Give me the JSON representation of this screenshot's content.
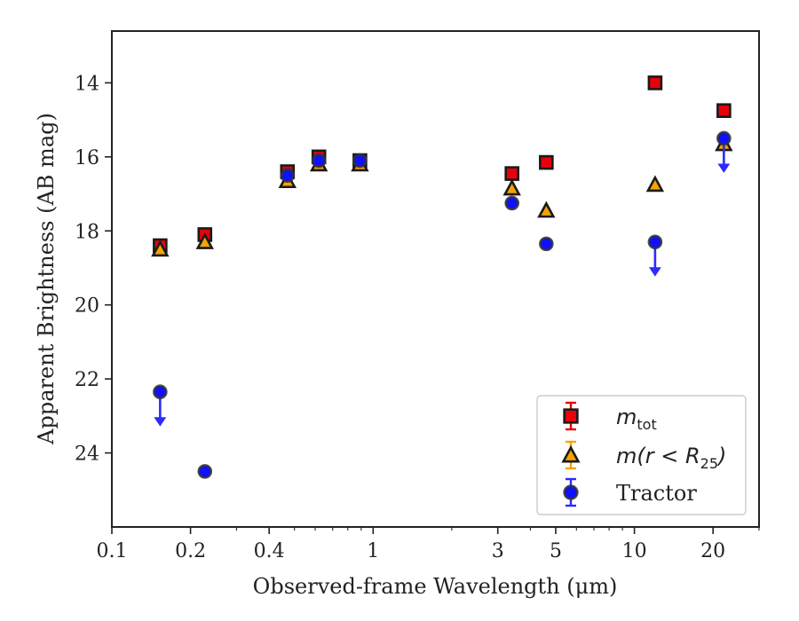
{
  "chart_data": {
    "type": "scatter",
    "title": "",
    "xlabel": "Observed-frame Wavelength (μm)",
    "ylabel": "Apparent Brightness (AB mag)",
    "x_scale": "log",
    "xlim": [
      0.1,
      30
    ],
    "ylim": [
      26.0,
      12.6
    ],
    "y_inverted": true,
    "grid": false,
    "legend_position": "bottom-right",
    "x_ticks": [
      {
        "value": 0.1,
        "label": "0.1"
      },
      {
        "value": 0.2,
        "label": "0.2"
      },
      {
        "value": 0.4,
        "label": "0.4"
      },
      {
        "value": 1,
        "label": "1"
      },
      {
        "value": 3,
        "label": "3"
      },
      {
        "value": 5,
        "label": "5"
      },
      {
        "value": 10,
        "label": "10"
      },
      {
        "value": 20,
        "label": "20"
      }
    ],
    "y_ticks": [
      {
        "value": 14,
        "label": "14"
      },
      {
        "value": 16,
        "label": "16"
      },
      {
        "value": 18,
        "label": "18"
      },
      {
        "value": 20,
        "label": "20"
      },
      {
        "value": 22,
        "label": "22"
      },
      {
        "value": 24,
        "label": "24"
      }
    ],
    "series": [
      {
        "name": "m_tot",
        "legend_main": "m",
        "legend_sub": "tot",
        "marker": "square",
        "color": "#e8000b",
        "edge": "#1a1a1a",
        "errcolor": "#e8000b",
        "points": [
          {
            "x": 0.153,
            "y": 18.4
          },
          {
            "x": 0.227,
            "y": 18.1
          },
          {
            "x": 0.47,
            "y": 16.4
          },
          {
            "x": 0.62,
            "y": 16.0
          },
          {
            "x": 0.89,
            "y": 16.1
          },
          {
            "x": 3.4,
            "y": 16.45
          },
          {
            "x": 4.6,
            "y": 16.15
          },
          {
            "x": 12.0,
            "y": 14.0
          },
          {
            "x": 22.0,
            "y": 14.75
          }
        ]
      },
      {
        "name": "m(r<R25)",
        "legend_main": "m(r < R",
        "legend_sub": "25",
        "legend_tail": ")",
        "marker": "triangle",
        "color": "#f5a300",
        "edge": "#1a1a1a",
        "errcolor": "#f5a300",
        "points": [
          {
            "x": 0.153,
            "y": 18.5
          },
          {
            "x": 0.227,
            "y": 18.3
          },
          {
            "x": 0.47,
            "y": 16.65
          },
          {
            "x": 0.62,
            "y": 16.2
          },
          {
            "x": 0.89,
            "y": 16.2
          },
          {
            "x": 3.4,
            "y": 16.85
          },
          {
            "x": 4.6,
            "y": 17.45
          },
          {
            "x": 12.0,
            "y": 16.75
          },
          {
            "x": 22.0,
            "y": 15.65
          }
        ]
      },
      {
        "name": "Tractor",
        "legend_main": "Tractor",
        "marker": "circle",
        "color": "#1010ff",
        "edge": "#333333",
        "errcolor": "#2b2bff",
        "points": [
          {
            "x": 0.153,
            "y": 22.35,
            "upper_limit": true
          },
          {
            "x": 0.227,
            "y": 24.5
          },
          {
            "x": 0.47,
            "y": 16.5
          },
          {
            "x": 0.62,
            "y": 16.1
          },
          {
            "x": 0.89,
            "y": 16.1
          },
          {
            "x": 3.4,
            "y": 17.25
          },
          {
            "x": 4.6,
            "y": 18.35
          },
          {
            "x": 12.0,
            "y": 18.3,
            "upper_limit": true
          },
          {
            "x": 22.0,
            "y": 15.5,
            "upper_limit": true
          }
        ]
      }
    ]
  }
}
